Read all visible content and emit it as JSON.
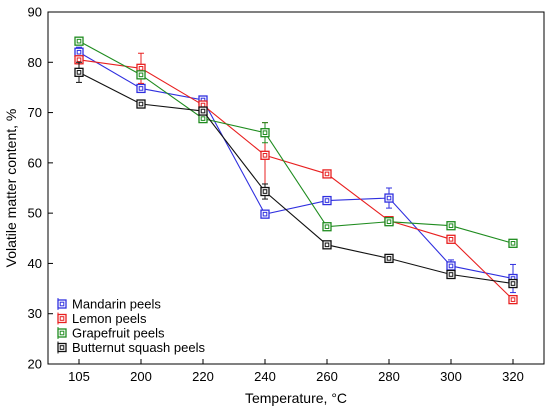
{
  "chart_data": {
    "type": "line",
    "title": "",
    "xlabel": "Temperature, °C",
    "ylabel": "Volatile matter content, %",
    "categories": [
      "105",
      "200",
      "220",
      "240",
      "260",
      "280",
      "300",
      "320"
    ],
    "ylim": [
      20,
      90
    ],
    "yticks": [
      20,
      30,
      40,
      50,
      60,
      70,
      80,
      90
    ],
    "grid": false,
    "legend_position": "bottom-left",
    "series": [
      {
        "name": "Mandarin peels",
        "color": "#2f2fdf",
        "values": [
          82,
          74.8,
          72.5,
          49.8,
          52.5,
          53,
          39.5,
          37
        ],
        "errors": [
          1,
          0.8,
          0.6,
          0.6,
          0.5,
          2,
          1.2,
          2.8
        ]
      },
      {
        "name": "Lemon peels",
        "color": "#e82020",
        "values": [
          80.5,
          78.8,
          71.5,
          61.5,
          57.8,
          48.5,
          44.8,
          32.8
        ],
        "errors": [
          0.8,
          3,
          0.6,
          6.5,
          0.5,
          0.5,
          0.5,
          0.5
        ]
      },
      {
        "name": "Grapefruit peels",
        "color": "#1f8c1f",
        "values": [
          84.2,
          77.5,
          68.8,
          66,
          47.3,
          48.3,
          47.5,
          44
        ],
        "errors": [
          0.5,
          0.5,
          0.5,
          2,
          0.5,
          0.5,
          0.5,
          0.5
        ]
      },
      {
        "name": "Butternut squash peels",
        "color": "#111111",
        "values": [
          78,
          71.7,
          70.3,
          54.3,
          43.7,
          41,
          37.8,
          36
        ],
        "errors": [
          2,
          0.5,
          0.5,
          1.5,
          0.5,
          0.5,
          0.5,
          0.7
        ]
      }
    ]
  }
}
